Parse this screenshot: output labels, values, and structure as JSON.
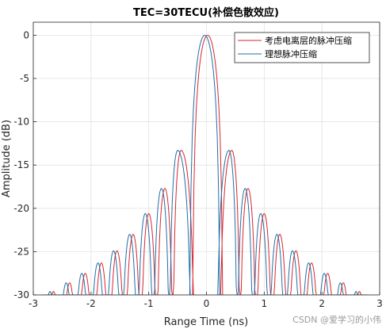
{
  "chart_data": {
    "type": "line",
    "title": "TEC=30TECU(补偿色散效应)",
    "xlabel": "Range Time (ns)",
    "ylabel": "Amplitude (dB)",
    "xlim": [
      -3,
      3
    ],
    "ylim": [
      -30,
      1.5
    ],
    "xticks": [
      -3,
      -2,
      -1,
      0,
      1,
      2,
      3
    ],
    "yticks": [
      0,
      -5,
      -10,
      -15,
      -20,
      -25,
      -30
    ],
    "grid": true,
    "legend_position": "top-right",
    "series": [
      {
        "name": "考虑电离层的脉冲压缩",
        "color": "#d9262c",
        "peaks": [
          {
            "x": -2.65,
            "y": -29.6
          },
          {
            "x": -2.37,
            "y": -28.6
          },
          {
            "x": -2.1,
            "y": -27.5
          },
          {
            "x": -1.82,
            "y": -26.3
          },
          {
            "x": -1.55,
            "y": -24.9
          },
          {
            "x": -1.27,
            "y": -23.0
          },
          {
            "x": -1.0,
            "y": -20.6
          },
          {
            "x": -0.72,
            "y": -17.7
          },
          {
            "x": -0.44,
            "y": -13.3
          },
          {
            "x": 0.02,
            "y": 0.0
          },
          {
            "x": 0.44,
            "y": -13.3
          },
          {
            "x": 0.72,
            "y": -17.7
          },
          {
            "x": 1.0,
            "y": -20.6
          },
          {
            "x": 1.27,
            "y": -23.0
          },
          {
            "x": 1.55,
            "y": -24.9
          },
          {
            "x": 1.82,
            "y": -26.3
          },
          {
            "x": 2.1,
            "y": -27.5
          },
          {
            "x": 2.37,
            "y": -28.6
          },
          {
            "x": 2.65,
            "y": -29.6
          }
        ]
      },
      {
        "name": "理想脉冲压缩",
        "color": "#1f6fa8",
        "peaks": [
          {
            "x": -2.71,
            "y": -29.6
          },
          {
            "x": -2.43,
            "y": -28.6
          },
          {
            "x": -2.16,
            "y": -27.5
          },
          {
            "x": -1.88,
            "y": -26.3
          },
          {
            "x": -1.61,
            "y": -24.9
          },
          {
            "x": -1.33,
            "y": -23.0
          },
          {
            "x": -1.06,
            "y": -20.6
          },
          {
            "x": -0.78,
            "y": -17.7
          },
          {
            "x": -0.5,
            "y": -13.3
          },
          {
            "x": -0.03,
            "y": 0.0
          },
          {
            "x": 0.39,
            "y": -13.3
          },
          {
            "x": 0.67,
            "y": -17.7
          },
          {
            "x": 0.94,
            "y": -20.6
          },
          {
            "x": 1.22,
            "y": -23.0
          },
          {
            "x": 1.49,
            "y": -24.9
          },
          {
            "x": 1.77,
            "y": -26.3
          },
          {
            "x": 2.04,
            "y": -27.5
          },
          {
            "x": 2.32,
            "y": -28.6
          },
          {
            "x": 2.59,
            "y": -29.6
          }
        ]
      }
    ]
  },
  "watermark": "CSDN @爱学习的小伟"
}
